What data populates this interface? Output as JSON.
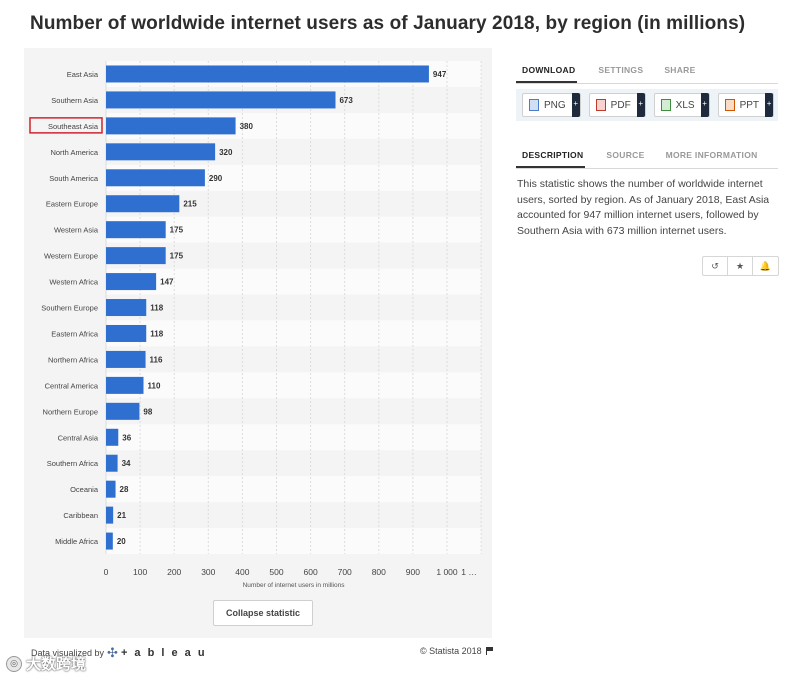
{
  "title": "Number of worldwide internet users as of January 2018, by region (in millions)",
  "chart_data": {
    "type": "bar",
    "orientation": "horizontal",
    "categories": [
      "East Asia",
      "Southern Asia",
      "Southeast Asia",
      "North America",
      "South America",
      "Eastern Europe",
      "Western Asia",
      "Western Europe",
      "Western Africa",
      "Southern Europe",
      "Eastern Africa",
      "Northern Africa",
      "Central America",
      "Northern Europe",
      "Central Asia",
      "Southern Africa",
      "Oceania",
      "Caribbean",
      "Middle Africa"
    ],
    "values": [
      947,
      673,
      380,
      320,
      290,
      215,
      175,
      175,
      147,
      118,
      118,
      116,
      110,
      98,
      36,
      34,
      28,
      21,
      20
    ],
    "value_labels": [
      "947",
      "673",
      "380",
      "320",
      "290",
      "215",
      "175",
      "175",
      "147",
      "118",
      "118",
      "116",
      "110",
      "98",
      "36",
      "34",
      "28",
      "21",
      "20"
    ],
    "highlighted_category": "Southeast Asia",
    "xlabel": "Number of internet users in millions",
    "xticks": [
      0,
      100,
      200,
      300,
      400,
      500,
      600,
      700,
      800,
      900,
      1000
    ],
    "xtick_labels": [
      "0",
      "100",
      "200",
      "300",
      "400",
      "500",
      "600",
      "700",
      "800",
      "900",
      "1 000"
    ],
    "xtick_extra_label": "1 …",
    "xlim": [
      0,
      1100
    ],
    "grid": "vertical",
    "bar_color": "#2f6fd0",
    "highlight_color": "#d0252d"
  },
  "collapse_label": "Collapse statistic",
  "footer": {
    "visualized_by": "Data visualized by",
    "tableau_word": "+ a b l e a u",
    "copyright": "© Statista 2018"
  },
  "watermark": "大数跨境",
  "panel": {
    "tabs_top": [
      "DOWNLOAD",
      "SETTINGS",
      "SHARE"
    ],
    "downloads": [
      {
        "label": "PNG",
        "icon": "png-file-icon"
      },
      {
        "label": "PDF",
        "icon": "pdf-file-icon"
      },
      {
        "label": "XLS",
        "icon": "xls-file-icon"
      },
      {
        "label": "PPT",
        "icon": "ppt-file-icon"
      }
    ],
    "tabs_bottom": [
      "DESCRIPTION",
      "SOURCE",
      "MORE INFORMATION"
    ],
    "description": "This statistic shows the number of worldwide internet users, sorted by region. As of January 2018, East Asia accounted for 947 million internet users, followed by Southern Asia with 673 million internet users.",
    "actions": [
      {
        "name": "history-icon",
        "glyph": "↺"
      },
      {
        "name": "star-icon",
        "glyph": "★"
      },
      {
        "name": "bell-icon",
        "glyph": "🔔"
      }
    ]
  }
}
